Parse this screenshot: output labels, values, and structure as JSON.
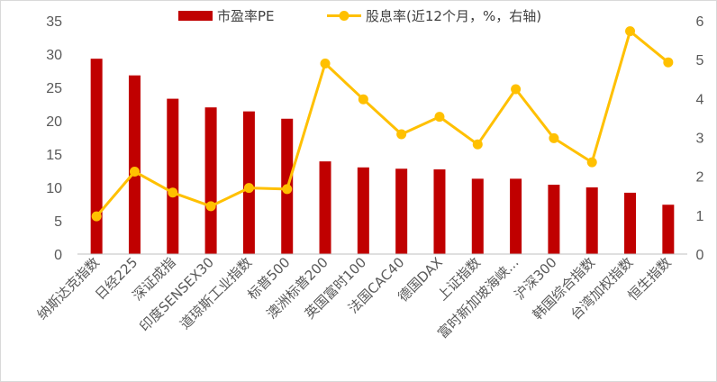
{
  "chart_data": {
    "type": "bar",
    "categories": [
      "纳斯达克指数",
      "日经225",
      "深证成指",
      "印度SENSEX30",
      "道琼斯工业指数",
      "标普500",
      "澳洲标普200",
      "英国富时100",
      "法国CAC40",
      "德国DAX",
      "上证指数",
      "富时新加坡海峡...",
      "沪深300",
      "韩国综合指数",
      "台湾加权指数",
      "恒生指数"
    ],
    "series": [
      {
        "name": "市盈率PE",
        "type": "bar",
        "axis": "left",
        "color": "#c00000",
        "values": [
          29.3,
          26.8,
          23.3,
          22.0,
          21.4,
          20.3,
          13.9,
          13.0,
          12.8,
          12.7,
          11.3,
          11.3,
          10.4,
          10.0,
          9.2,
          7.4
        ]
      },
      {
        "name": "股息率(近12个月，%，右轴)",
        "type": "line",
        "axis": "right",
        "color": "#ffc000",
        "values": [
          0.97,
          2.12,
          1.58,
          1.23,
          1.7,
          1.67,
          4.9,
          3.98,
          3.08,
          3.53,
          2.82,
          4.24,
          2.98,
          2.36,
          5.73,
          4.93
        ]
      }
    ],
    "y_left": {
      "min": 0,
      "max": 35,
      "ticks": [
        "0",
        "5",
        "10",
        "15",
        "20",
        "25",
        "30",
        "35"
      ]
    },
    "y_right": {
      "min": 0,
      "max": 6,
      "ticks": [
        "0",
        "1",
        "2",
        "3",
        "4",
        "5",
        "6"
      ]
    },
    "grid": false,
    "legend_position": "top"
  }
}
